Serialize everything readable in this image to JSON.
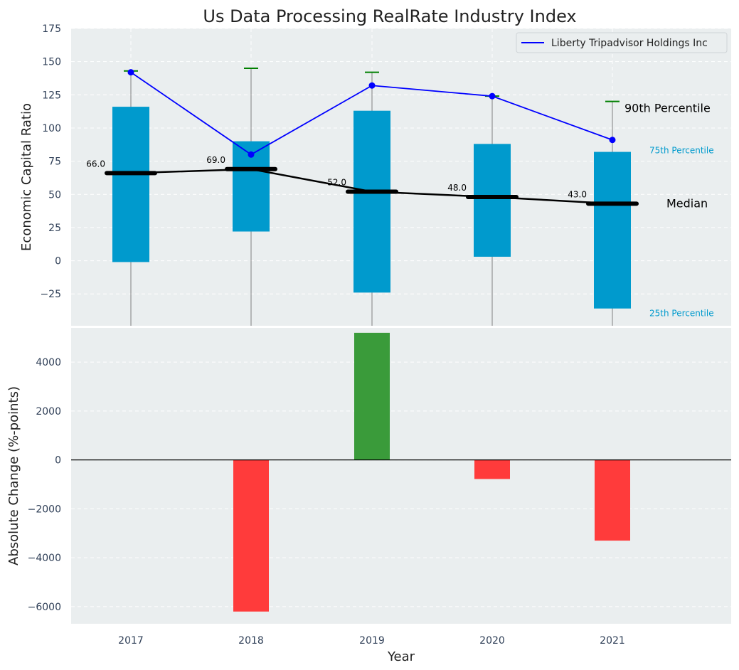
{
  "chart_data": {
    "title": "Us Data Processing RealRate Industry Index",
    "years": [
      "2017",
      "2018",
      "2019",
      "2020",
      "2021"
    ],
    "top": {
      "ylabel": "Economic Capital Ratio",
      "ylim": [
        -49,
        175
      ],
      "yticks": [
        -25,
        0,
        25,
        50,
        75,
        100,
        125,
        150,
        175
      ],
      "ytick_labels": [
        "−25",
        "0",
        "25",
        "50",
        "75",
        "100",
        "125",
        "150",
        "175"
      ],
      "percentile_25": [
        -1,
        22,
        -24,
        3,
        -36
      ],
      "percentile_75": [
        116,
        90,
        113,
        88,
        82
      ],
      "median": [
        66,
        69,
        52,
        48,
        43
      ],
      "median_labels": [
        "66.0",
        "69.0",
        "52.0",
        "48.0",
        "43.0"
      ],
      "percentile_90": [
        143,
        145,
        142,
        124,
        120
      ],
      "company": {
        "name": "Liberty Tripadvisor Holdings Inc",
        "values": [
          142,
          80,
          132,
          124,
          91
        ]
      },
      "annotations": {
        "p90": "90th Percentile",
        "p75": "75th Percentile",
        "median": "Median",
        "p25": "25th Percentile"
      },
      "legend_position": "upper-right"
    },
    "bottom": {
      "ylabel": "Absolute Change (%-points)",
      "xlabel": "Year",
      "ylim": [
        -6700,
        5400
      ],
      "yticks": [
        -6000,
        -4000,
        -2000,
        0,
        2000,
        4000
      ],
      "ytick_labels": [
        "−6000",
        "−4000",
        "−2000",
        "0",
        "2000",
        "4000"
      ],
      "changes": [
        0,
        -6200,
        5200,
        -780,
        -3300
      ]
    },
    "colors": {
      "background": "#eaeeef",
      "box": "#009acd",
      "company_line": "#0000ff",
      "median": "#000000",
      "p90_marker": "#008000",
      "whisker": "#808080",
      "positive": "#3a9b3a",
      "negative": "#ff3b3b",
      "p75_label": "#009acd",
      "p25_label": "#009acd"
    }
  }
}
